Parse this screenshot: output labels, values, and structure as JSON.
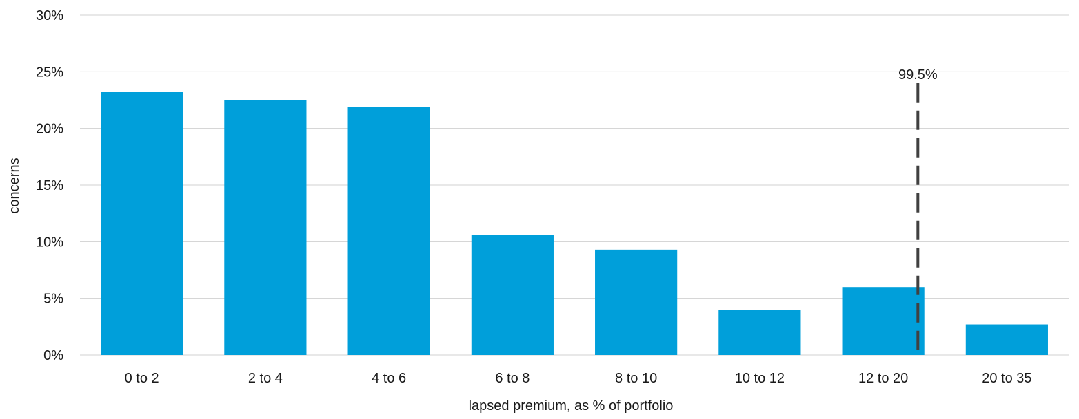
{
  "chart_data": {
    "type": "bar",
    "title": "",
    "xlabel": "lapsed premium, as % of portfolio",
    "ylabel": "concerns",
    "categories": [
      "0 to 2",
      "2 to 4",
      "4 to 6",
      "6 to 8",
      "8 to 10",
      "10 to 12",
      "12 to 20",
      "20 to 35"
    ],
    "values": [
      23.2,
      22.5,
      21.9,
      10.6,
      9.3,
      4.0,
      6.0,
      2.7
    ],
    "ylim": [
      0,
      30
    ],
    "yticks": [
      0,
      5,
      10,
      15,
      20,
      25,
      30
    ],
    "ytick_labels": [
      "0%",
      "5%",
      "10%",
      "15%",
      "20%",
      "25%",
      "30%"
    ],
    "grid": true,
    "legend": "none",
    "bar_color": "#009fda",
    "annotations": [
      {
        "type": "vertical-dashed-line",
        "label": "99.5%",
        "category": "12 to 20",
        "position_within_category": 0.78,
        "y_top": 24,
        "color": "#404040"
      }
    ]
  }
}
